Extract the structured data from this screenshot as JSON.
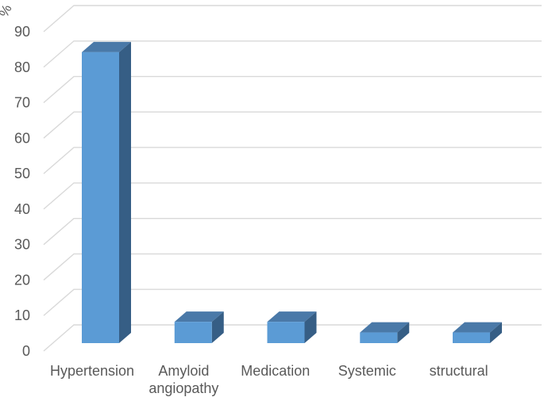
{
  "chart_data": {
    "type": "bar",
    "style": "3d",
    "title": "",
    "xlabel": "",
    "ylabel": "%",
    "categories": [
      "Hypertension",
      "Amyloid\nangiopathy",
      "Medication",
      "Systemic",
      "structural"
    ],
    "values": [
      82,
      6,
      6,
      3,
      3
    ],
    "unit": "%",
    "ylim": [
      0,
      90
    ],
    "yticks": [
      0,
      10,
      20,
      30,
      40,
      50,
      60,
      70,
      80,
      90
    ],
    "grid": true,
    "legend": false,
    "colors": {
      "bar_front": "#5B9BD5",
      "bar_top": "#4A79A8",
      "bar_side": "#365E85",
      "gridline": "#D9D9D9",
      "text": "#595959",
      "background": "#FFFFFF"
    }
  }
}
